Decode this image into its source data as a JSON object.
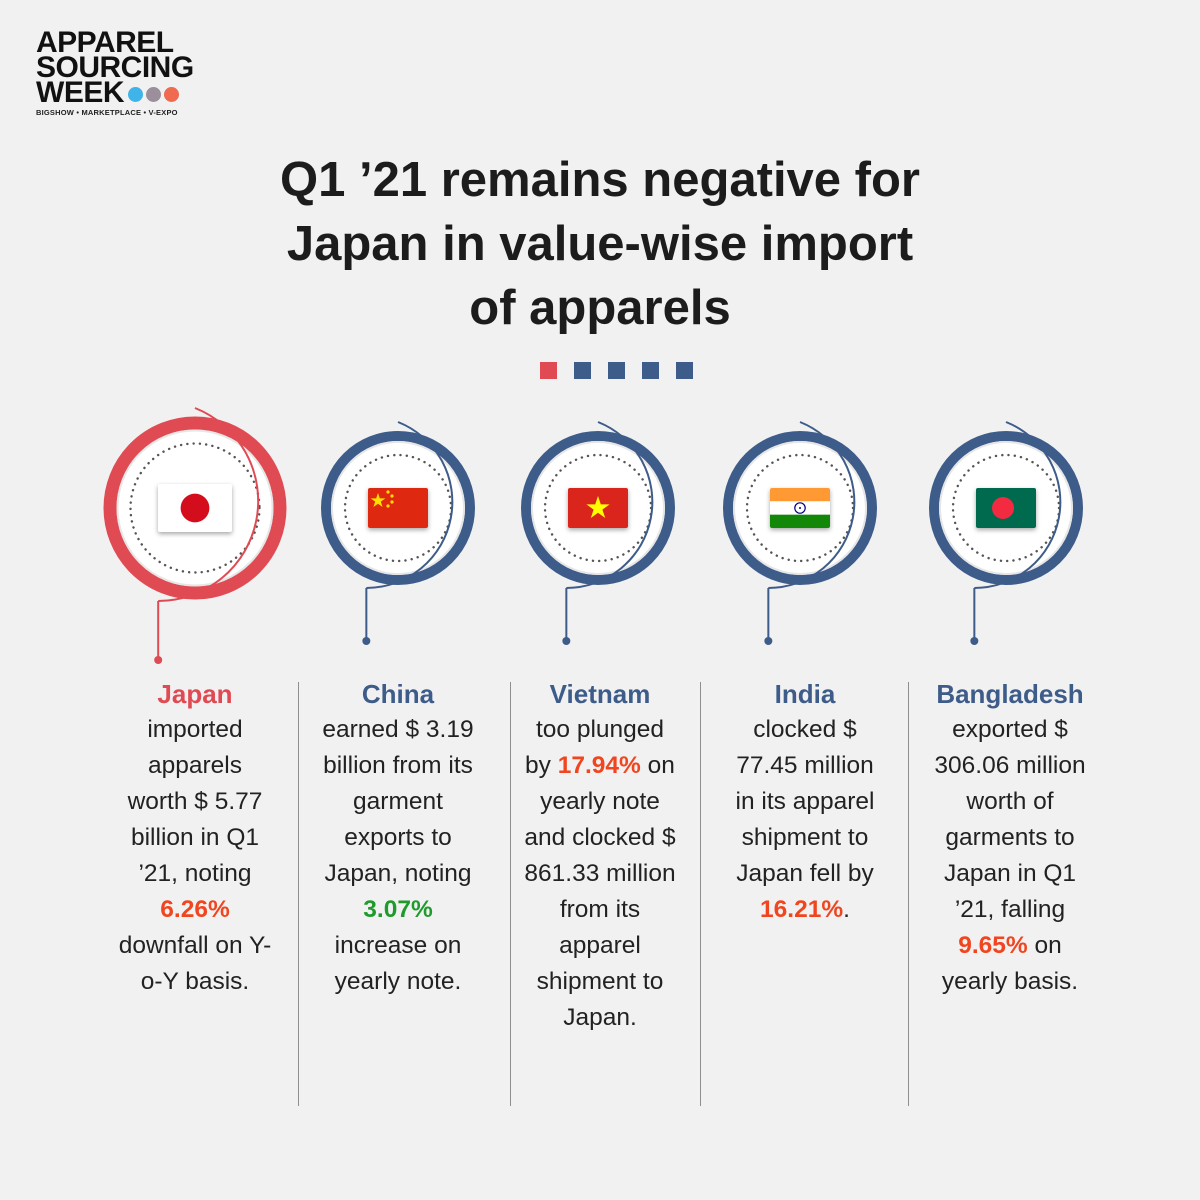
{
  "logo": {
    "line1": "APPAREL",
    "line2": "SOURCING",
    "line3": "WEEK",
    "tagline": "BIGSHOW • MARKETPLACE • V-EXPO",
    "dot_colors": [
      "#3fb4e8",
      "#9a8f9b",
      "#ef6a4e"
    ]
  },
  "title": {
    "line1": "Q1 ’21 remains negative for",
    "line2": "Japan in value-wise import",
    "line3": "of apparels"
  },
  "colors": {
    "accent_red": "#e04a52",
    "accent_blue": "#3e5c8a",
    "highlight_orange": "#f0451e",
    "highlight_green": "#1f9a2c"
  },
  "countries": [
    {
      "name": "Japan",
      "flag": "japan-flag-icon",
      "pre": "imported apparels worth $ 5.77 billion in Q1 ’21, noting",
      "highlight": "6.26%",
      "post": "downfall on Y-o-Y basis."
    },
    {
      "name": "China",
      "flag": "china-flag-icon",
      "pre": "earned $ 3.19 billion from its garment exports to Japan, noting",
      "highlight": "3.07%",
      "post": "increase on yearly note."
    },
    {
      "name": "Vietnam",
      "flag": "vietnam-flag-icon",
      "pre": "too plunged by",
      "highlight": "17.94%",
      "post": "on yearly note and clocked $ 861.33 million from its apparel shipment to Japan."
    },
    {
      "name": "India",
      "flag": "india-flag-icon",
      "pre": "clocked $ 77.45 million in its apparel shipment to Japan fell by",
      "highlight": "16.21%",
      "post": "."
    },
    {
      "name": "Bangladesh",
      "flag": "bangladesh-flag-icon",
      "pre": "exported $ 306.06 million worth of garments to Japan in Q1 ’21, falling",
      "highlight": "9.65%",
      "post": "on yearly basis."
    }
  ]
}
